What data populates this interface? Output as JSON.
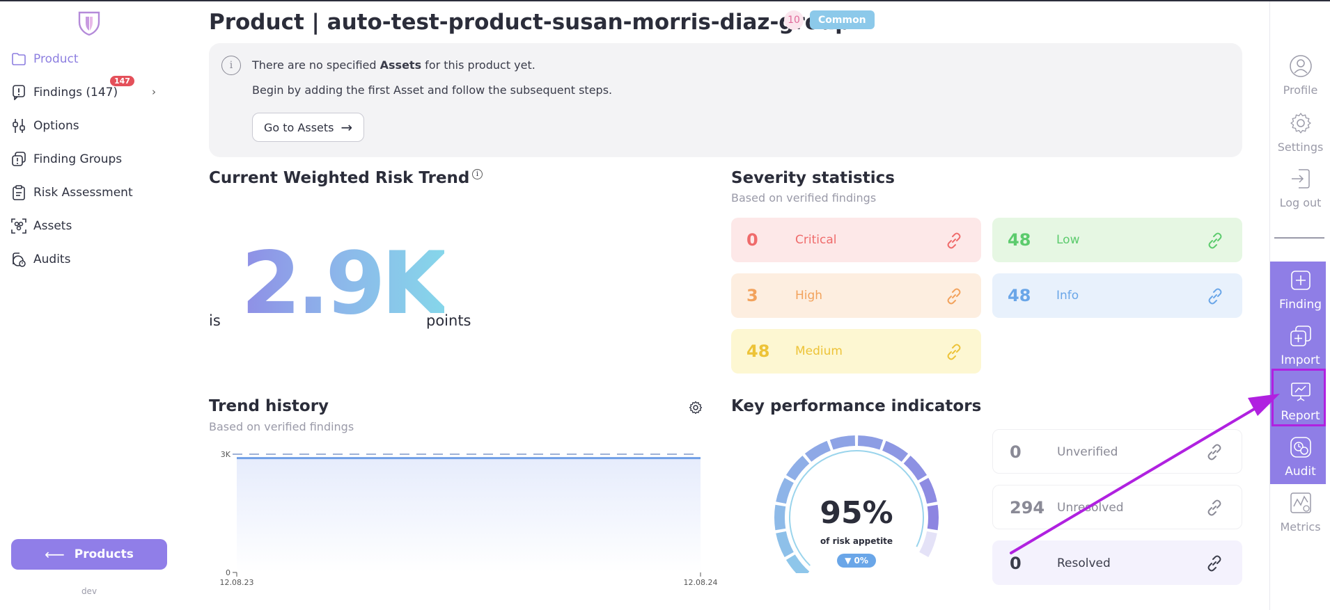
{
  "sidebar": {
    "items": [
      {
        "label": "Product",
        "icon": "folder-icon"
      },
      {
        "label": "Findings (147)",
        "icon": "findings-icon",
        "badge": "147"
      },
      {
        "label": "Options",
        "icon": "options-icon"
      },
      {
        "label": "Finding Groups",
        "icon": "finding-groups-icon"
      },
      {
        "label": "Risk Assessment",
        "icon": "clipboard-icon"
      },
      {
        "label": "Assets",
        "icon": "assets-icon"
      },
      {
        "label": "Audits",
        "icon": "audits-icon"
      }
    ],
    "products_button": "Products",
    "env_label": "dev"
  },
  "header": {
    "title": "Product | auto-test-product-susan-morris-diaz-group",
    "count": "10",
    "tag": "Common"
  },
  "info": {
    "line1_pre": "There are no specified ",
    "line1_bold": "Assets",
    "line1_post": " for this product yet.",
    "line2": "Begin by adding the first Asset and follow the subsequent steps.",
    "button": "Go to Assets"
  },
  "risk": {
    "title": "Current Weighted Risk Trend",
    "prefix": "is",
    "value": "2.9K",
    "suffix": "points"
  },
  "severity": {
    "title": "Severity statistics",
    "subtitle": "Based on verified findings",
    "cards": [
      {
        "count": "0",
        "label": "Critical",
        "color": "#ef6b6b",
        "bg": "#fde8e8"
      },
      {
        "count": "48",
        "label": "Low",
        "color": "#5ccb6d",
        "bg": "#e6f7e3"
      },
      {
        "count": "3",
        "label": "High",
        "color": "#f2a25c",
        "bg": "#fdeee0"
      },
      {
        "count": "48",
        "label": "Info",
        "color": "#6aa6e8",
        "bg": "#e8f1fc"
      },
      {
        "count": "48",
        "label": "Medium",
        "color": "#edc338",
        "bg": "#fdf7d2"
      }
    ]
  },
  "trend": {
    "title": "Trend history",
    "subtitle": "Based on verified findings"
  },
  "chart_data": {
    "type": "area",
    "x": [
      "12.08.23",
      "12.08.24"
    ],
    "series": [
      {
        "values": [
          2900,
          2900
        ]
      }
    ],
    "reference_line": 3000,
    "ylim": [
      0,
      3000
    ],
    "y_ticks": [
      "0",
      "3K"
    ],
    "x_ticks": [
      "12.08.23",
      "12.08.24"
    ],
    "line_color": "#6f9fe6",
    "fill_color": "#eef2fd"
  },
  "kpi": {
    "title": "Key performance indicators",
    "gauge_value": "95%",
    "gauge_fraction": 0.95,
    "gauge_caption": "of risk appetite",
    "gauge_delta": "▼ 0%",
    "cards": [
      {
        "count": "0",
        "label": "Unverified"
      },
      {
        "count": "294",
        "label": "Unresolved"
      },
      {
        "count": "0",
        "label": "Resolved"
      }
    ]
  },
  "rail": {
    "top": [
      {
        "label": "Profile",
        "icon": "profile-icon"
      },
      {
        "label": "Settings",
        "icon": "settings-icon"
      },
      {
        "label": "Log out",
        "icon": "logout-icon"
      }
    ],
    "actions": [
      {
        "label": "Finding",
        "icon": "add-finding-icon"
      },
      {
        "label": "Import",
        "icon": "import-icon"
      },
      {
        "label": "Report",
        "icon": "report-icon"
      },
      {
        "label": "Audit",
        "icon": "audit-icon"
      }
    ],
    "bottom": [
      {
        "label": "Metrics",
        "icon": "metrics-icon"
      }
    ]
  },
  "annotation": {
    "color": "#b021e0"
  }
}
